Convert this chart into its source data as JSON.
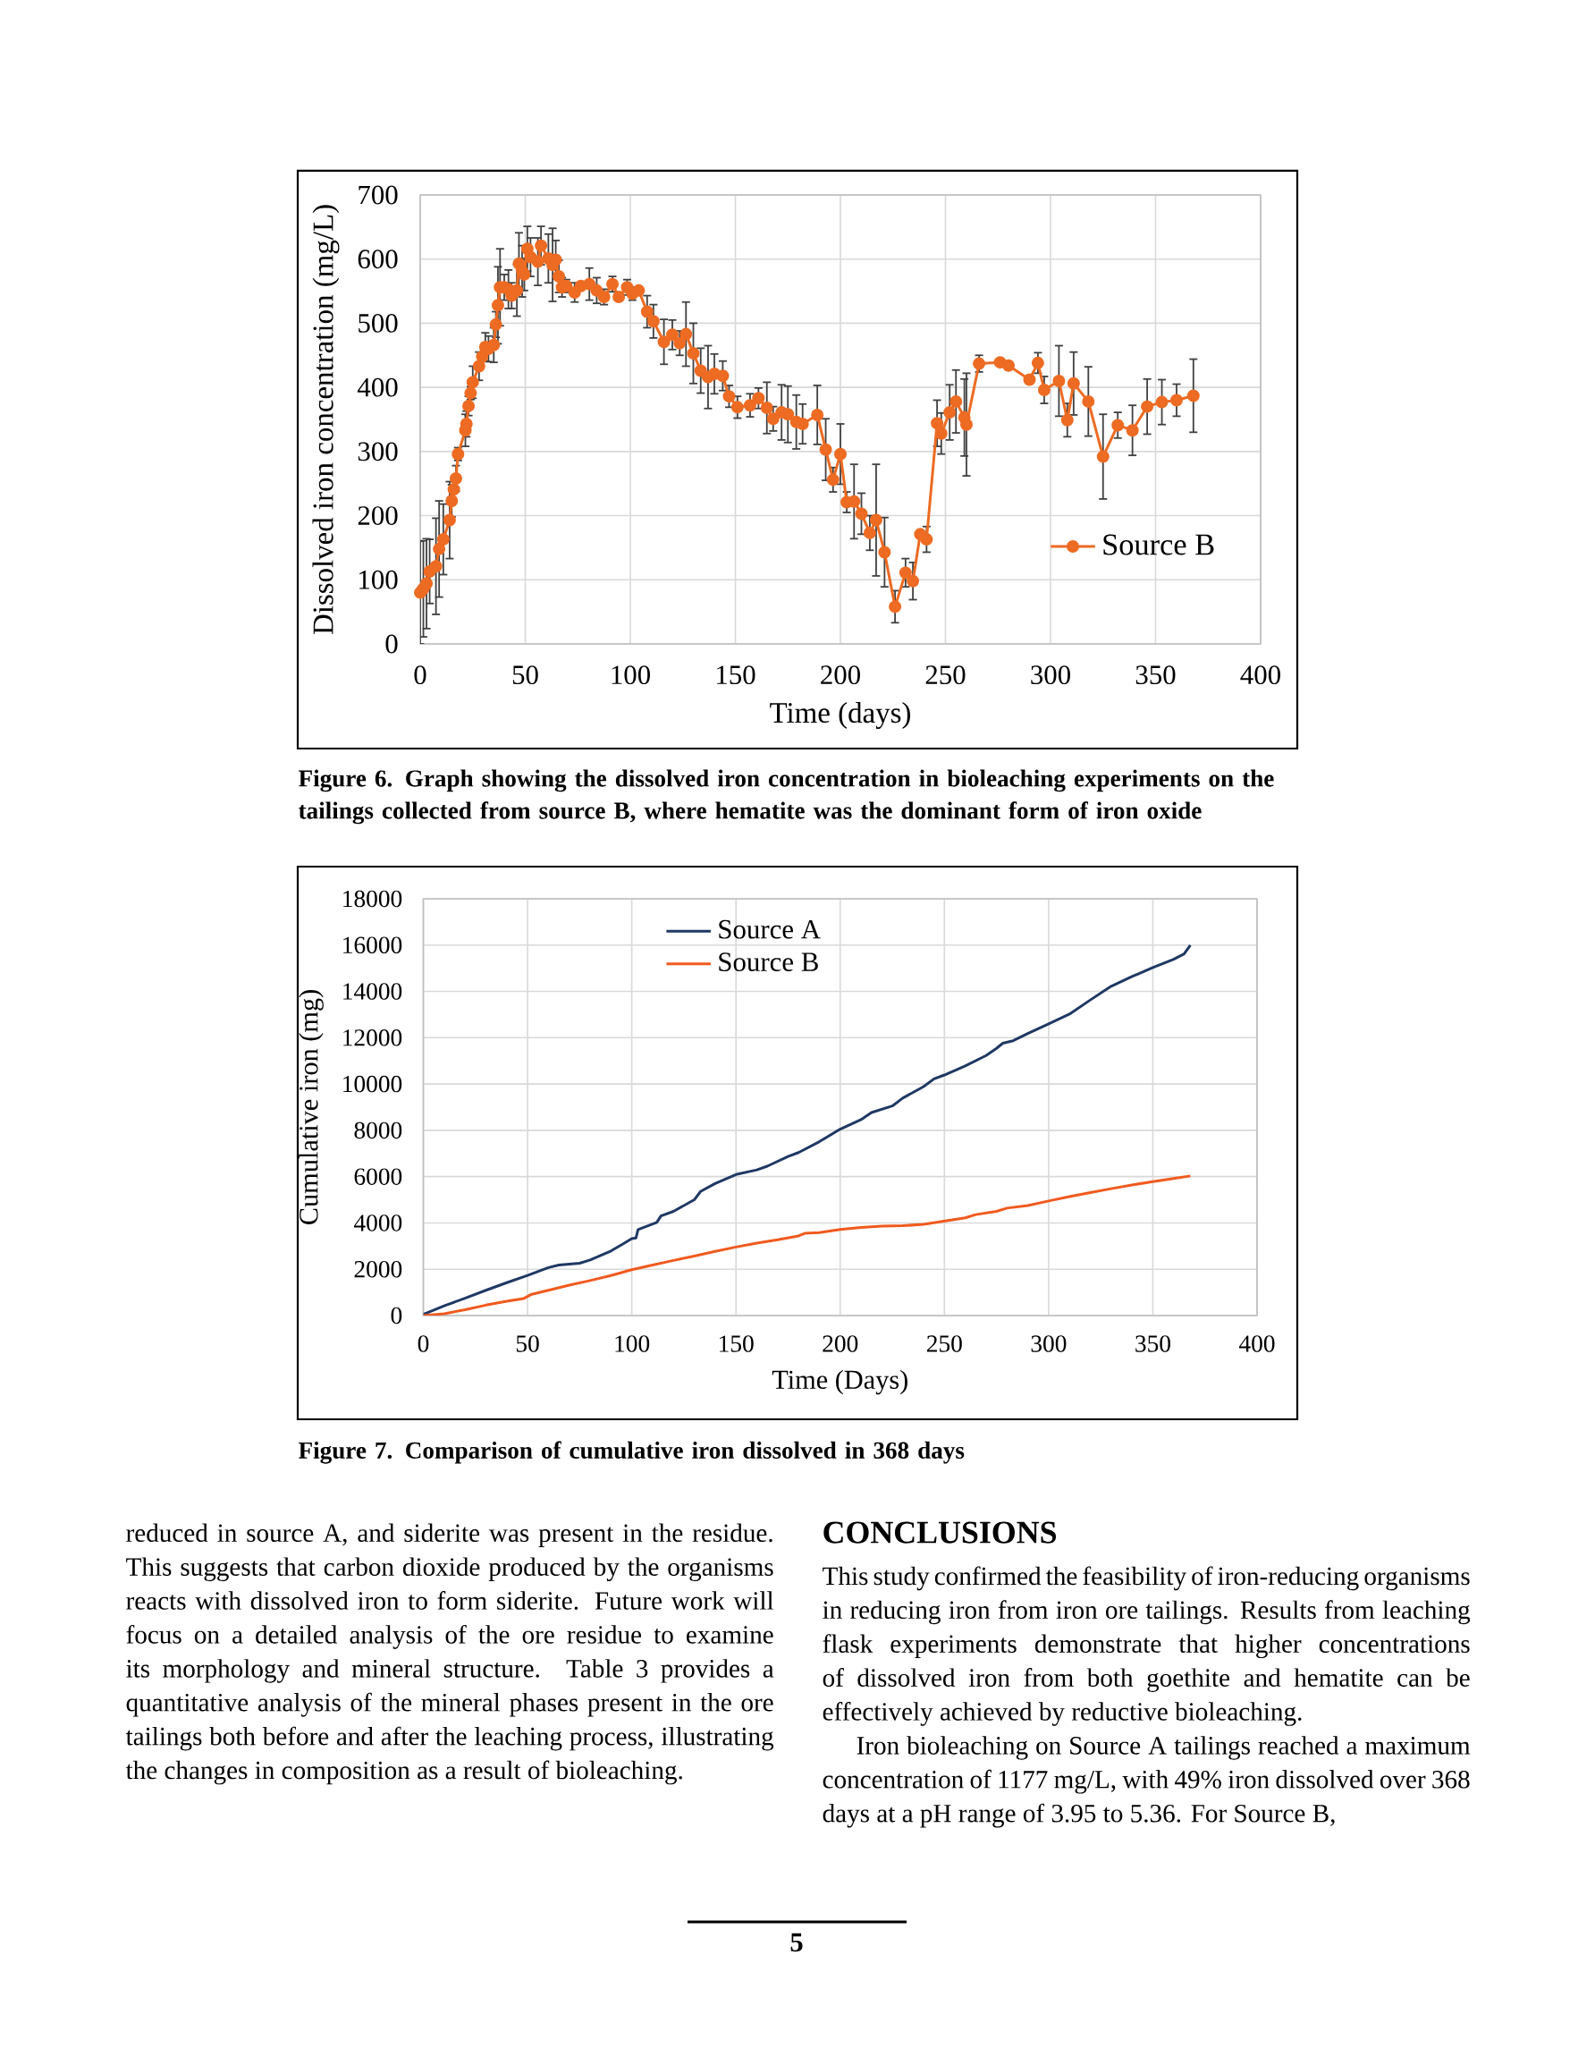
{
  "chart_data": [
    {
      "type": "line",
      "xlabel": "Time (days)",
      "ylabel": "Dissolved iron concentration (mg/L)",
      "xlim": [
        0,
        400
      ],
      "xticks": [
        0,
        50,
        100,
        150,
        200,
        250,
        300,
        350,
        400
      ],
      "ylim": [
        0,
        700
      ],
      "yticks": [
        0,
        100,
        200,
        300,
        400,
        500,
        600,
        700
      ],
      "grid": true,
      "legend": "bottom right",
      "marker": "circle",
      "series": [
        {
          "name": "Source B",
          "color": "#ed6b22",
          "x": [
            0,
            1.5,
            3,
            4.5,
            7.5,
            9,
            11,
            14,
            15,
            16,
            17,
            18,
            21.5,
            22,
            23,
            24,
            25,
            28,
            29.5,
            31,
            32.5,
            35,
            36,
            37,
            38,
            40,
            42,
            43.5,
            46,
            47,
            48.5,
            49.5,
            51,
            52.5,
            56,
            57.5,
            61,
            63,
            64.5,
            66,
            67.5,
            69.5,
            73.5,
            76.5,
            80.5,
            84,
            87.5,
            91.5,
            94.5,
            98.5,
            101,
            104,
            108,
            111,
            116,
            120,
            123.5,
            126.5,
            130,
            133.5,
            137,
            140,
            144,
            147,
            151,
            157,
            161,
            165,
            168,
            172,
            175,
            179,
            182,
            189,
            193,
            196.5,
            200,
            203,
            206.5,
            210,
            214,
            217,
            221,
            226,
            231,
            234.5,
            238,
            241,
            246,
            248,
            252,
            255,
            259,
            260,
            266,
            276,
            280,
            290,
            294,
            297,
            304,
            308,
            311,
            318,
            325,
            332,
            339,
            346,
            353,
            360,
            368
          ],
          "values": [
            80,
            86,
            94,
            113,
            121,
            148,
            163,
            193,
            223,
            241,
            258,
            296,
            333,
            343,
            371,
            391,
            408,
            433,
            448,
            463,
            460,
            466,
            498,
            528,
            556,
            556,
            553,
            543,
            551,
            593,
            581,
            576,
            616,
            603,
            596,
            621,
            601,
            591,
            599,
            573,
            556,
            558,
            548,
            558,
            561,
            551,
            541,
            561,
            541,
            556,
            546,
            551,
            518,
            503,
            471,
            482,
            469,
            483,
            453,
            426,
            416,
            421,
            418,
            386,
            369,
            372,
            383,
            368,
            351,
            361,
            358,
            346,
            343,
            357,
            303,
            256,
            296,
            221,
            222,
            203,
            173,
            193,
            143,
            58,
            111,
            98,
            171,
            163,
            344,
            328,
            361,
            378,
            353,
            342,
            437,
            439,
            434,
            412,
            438,
            396,
            410,
            349,
            406,
            378,
            292,
            341,
            333,
            370,
            377,
            380,
            387
          ],
          "errors": [
            80,
            75,
            70,
            50,
            75,
            75,
            55,
            60,
            25,
            null,
            20,
            10,
            25,
            20,
            15,
            10,
            25,
            22,
            null,
            22,
            20,
            27,
            20,
            60,
            60,
            20,
            30,
            20,
            40,
            48,
            40,
            25,
            35,
            30,
            37,
            30,
            38,
            57,
            30,
            25,
            15,
            10,
            15,
            null,
            25,
            20,
            12,
            12,
            null,
            12,
            10,
            null,
            25,
            26,
            35,
            23,
            19,
            50,
            47,
            35,
            49,
            31,
            23,
            17,
            17,
            18,
            16,
            40,
            19,
            43,
            44,
            42,
            31,
            46,
            48,
            19,
            47,
            16,
            58,
            32,
            27,
            87,
            54,
            25,
            22,
            29,
            null,
            20,
            36,
            32,
            43,
            49,
            60,
            80,
            13,
            null,
            null,
            null,
            16,
            21,
            55,
            26,
            49,
            54,
            66,
            20,
            39,
            43,
            35,
            25,
            57
          ]
        }
      ],
      "annotations": [
        "Figure 6. Graph showing the dissolved iron concentration in bioleaching experiments on the tailings collected from source B, where hematite was the dominant form of iron oxide"
      ]
    },
    {
      "type": "line",
      "xlabel": "Time (Days)",
      "ylabel": "Cumulative iron (mg)",
      "xlim": [
        0,
        400
      ],
      "xticks": [
        0,
        50,
        100,
        150,
        200,
        250,
        300,
        350,
        400
      ],
      "ylim": [
        0,
        18000
      ],
      "yticks": [
        0,
        2000,
        4000,
        6000,
        8000,
        10000,
        12000,
        14000,
        16000,
        18000
      ],
      "grid": true,
      "legend": "top",
      "series": [
        {
          "name": "Source A",
          "color": "#1f3864",
          "x": [
            0,
            10,
            20,
            30,
            40,
            50,
            60,
            65,
            75,
            80,
            90,
            95,
            100,
            102,
            103,
            112,
            114,
            120,
            130,
            133,
            140,
            150,
            160,
            165,
            175,
            180,
            190,
            200,
            210,
            215,
            225,
            230,
            240,
            245,
            250,
            260,
            270,
            275,
            278,
            283,
            290,
            300,
            310,
            320,
            330,
            340,
            350,
            360,
            365,
            368
          ],
          "values": [
            50,
            420,
            750,
            1090,
            1420,
            1730,
            2070,
            2180,
            2260,
            2400,
            2790,
            3050,
            3320,
            3350,
            3710,
            4020,
            4300,
            4500,
            5000,
            5360,
            5700,
            6090,
            6290,
            6450,
            6870,
            7040,
            7510,
            8050,
            8460,
            8770,
            9050,
            9390,
            9890,
            10220,
            10390,
            10780,
            11230,
            11540,
            11760,
            11870,
            12180,
            12600,
            13020,
            13630,
            14220,
            14640,
            15030,
            15390,
            15620,
            16000
          ]
        },
        {
          "name": "Source B",
          "color": "#f05a1e",
          "x": [
            0,
            10,
            20,
            30,
            40,
            48,
            52,
            60,
            70,
            80,
            90,
            100,
            110,
            120,
            130,
            140,
            150,
            160,
            170,
            180,
            183,
            190,
            200,
            210,
            220,
            230,
            240,
            250,
            260,
            265,
            275,
            280,
            290,
            300,
            310,
            320,
            330,
            340,
            350,
            360,
            368
          ],
          "values": [
            0,
            80,
            250,
            450,
            620,
            730,
            920,
            1090,
            1310,
            1510,
            1730,
            1980,
            2180,
            2380,
            2570,
            2770,
            2960,
            3130,
            3270,
            3440,
            3550,
            3580,
            3720,
            3800,
            3860,
            3880,
            3940,
            4080,
            4220,
            4360,
            4500,
            4640,
            4750,
            4950,
            5140,
            5310,
            5480,
            5640,
            5780,
            5920,
            6030
          ]
        }
      ],
      "annotations": [
        "Figure 7. Comparison of cumulative iron dissolved in 368 days"
      ]
    },
    {
      "type": "other",
      "annotations": [
        "reduced in source A, and siderite was present in the residue. This suggests that carbon dioxide produced by the organisms reacts with dissolved iron to form siderite. Future work will focus on a detailed analysis of the ore residue to examine its morphology and mineral structure. Table 3 provides a quantitative analysis of the mineral phases present in the ore tailings both before and after the leaching process, illustrating the changes in composition as a result of bioleaching.",
        "CONCLUSIONS",
        "This study confirmed the feasibility of iron-reducing organisms in reducing iron from iron ore tailings. Results from leaching flask experiments demonstrate that higher concentrations of dissolved iron from both goethite and hematite can be effectively achieved by reductive bioleaching.",
        "Iron bioleaching on Source A tailings reached a maximum concentration of 1177 mg/L, with 49% iron dissolved over 368 days at a pH range of 3.95 to 5.36. For Source B,",
        "5"
      ]
    }
  ]
}
